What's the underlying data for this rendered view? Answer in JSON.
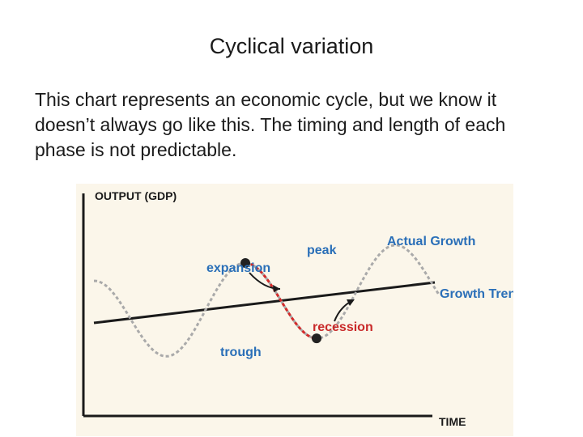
{
  "slide": {
    "title": "Cyclical variation",
    "body": "This chart represents an economic cycle, but we know it doesn’t always go like this. The timing and length of each phase is not predictable."
  },
  "figure": {
    "background": "#fbf6ea",
    "y_axis_label": "OUTPUT (GDP)",
    "x_axis_label": "TIME",
    "labels": {
      "actual_growth": "Actual Growth",
      "growth_trend": "Growth Trend",
      "peak": "peak",
      "trough": "trough",
      "expansion": "expansion",
      "recession": "recession"
    },
    "colors": {
      "actual_growth": "#aaaaaa",
      "expansion": "#2e9de0",
      "recession": "#d42a2a",
      "trend_line": "#1a1a1a",
      "label_blue": "#2a6fb8",
      "label_red": "#c92a2a"
    }
  }
}
